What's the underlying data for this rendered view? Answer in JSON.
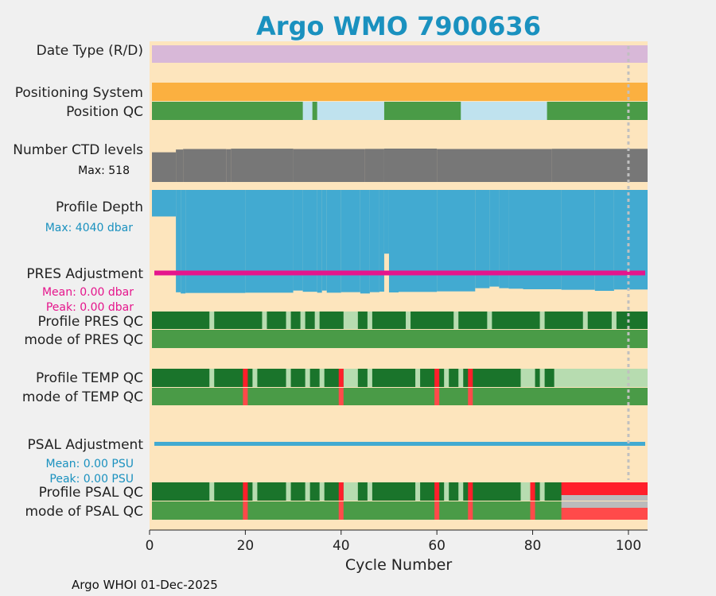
{
  "title": "Argo WMO 7900636",
  "footer": "Argo WHOI 01-Dec-2025",
  "colors": {
    "background": "#f0f0f0",
    "plot_bg": "#fde5bd",
    "title": "#1a91bf",
    "date_type": "#d8b8d8",
    "positioning": "#fbb040",
    "qc_good": "#1a742b",
    "qc_mode_good": "#4a9b47",
    "qc_light": "#b7dcb0",
    "qc_bad": "#ff1f2b",
    "qc_mode_bad": "#ff4a4a",
    "qc_missing": "#bbbbbb",
    "pos_interp": "#bfe2ee",
    "ctd": "#777777",
    "depth": "#42aad1",
    "pres_adj": "#e5158c",
    "psal_adj": "#42aad1",
    "dotted": "#c0c0c0",
    "axis": "#222222"
  },
  "labels": {
    "date_type": "Date Type (R/D)",
    "positioning": "Positioning System",
    "position_qc": "Position QC",
    "ctd_levels": "Number CTD levels",
    "ctd_max": "Max: 518",
    "profile_depth": "Profile Depth",
    "depth_max": "Max: 4040 dbar",
    "pres_adj": "PRES Adjustment",
    "pres_mean": "Mean: 0.00 dbar",
    "pres_peak": "Peak: 0.00 dbar",
    "profile_pres_qc": "Profile PRES QC",
    "mode_pres_qc": "mode of PRES QC",
    "profile_temp_qc": "Profile TEMP QC",
    "mode_temp_qc": "mode of TEMP QC",
    "psal_adj": "PSAL Adjustment",
    "psal_mean": "Mean: 0.00 PSU",
    "psal_peak": "Peak: 0.00 PSU",
    "profile_psal_qc": "Profile PSAL QC",
    "mode_psal_qc": "mode of PSAL QC"
  },
  "chart_data": {
    "type": "table",
    "xlabel": "Cycle Number",
    "xlim": [
      0,
      104
    ],
    "xticks": [
      0,
      20,
      40,
      60,
      80,
      100
    ],
    "grid": false,
    "dotted_cycle": 100,
    "position_qc_interp_ranges": [
      [
        32,
        34
      ],
      [
        35,
        49
      ],
      [
        65,
        83
      ]
    ],
    "pres_profile_qc_light_ranges": [
      [
        12.5,
        13.5
      ],
      [
        23.5,
        24.5
      ],
      [
        28.5,
        29.5
      ],
      [
        31.5,
        32.5
      ],
      [
        34.5,
        35.5
      ],
      [
        40.5,
        43.5
      ],
      [
        45.5,
        46.5
      ],
      [
        53.5,
        54.5
      ],
      [
        63.5,
        64.5
      ],
      [
        70.5,
        71.5
      ],
      [
        81.5,
        82.5
      ],
      [
        90.5,
        91.5
      ],
      [
        96.5,
        97.5
      ]
    ],
    "temp_profile_qc_light_ranges": [
      [
        12.5,
        13.5
      ],
      [
        21.5,
        22.5
      ],
      [
        28.5,
        29.5
      ],
      [
        32.5,
        33.5
      ],
      [
        35.5,
        36.5
      ],
      [
        40.5,
        43.5
      ],
      [
        45.5,
        46.5
      ],
      [
        55.5,
        56.5
      ],
      [
        61.5,
        62.5
      ],
      [
        64.5,
        65.5
      ],
      [
        77.5,
        80.5
      ],
      [
        81.5,
        82.5
      ],
      [
        84.5,
        104
      ]
    ],
    "temp_bad_cycles": [
      20,
      40,
      60,
      67
    ],
    "psal_profile_qc_light_ranges": [
      [
        12.5,
        13.5
      ],
      [
        21.5,
        22.5
      ],
      [
        28.5,
        29.5
      ],
      [
        32.5,
        33.5
      ],
      [
        35.5,
        36.5
      ],
      [
        40.5,
        43.5
      ],
      [
        45.5,
        46.5
      ],
      [
        55.5,
        56.5
      ],
      [
        61.5,
        62.5
      ],
      [
        64.5,
        65.5
      ],
      [
        77.5,
        79.5
      ],
      [
        81.5,
        82.5
      ]
    ],
    "psal_bad_cycles": [
      20,
      40,
      60,
      67,
      80
    ],
    "psal_profile_bad_range": [
      86,
      104
    ],
    "psal_mode_missing_range": [
      86,
      104
    ],
    "ctd_levels_max": 518,
    "ctd_levels": [
      {
        "x": [
          0.5,
          5.5
        ],
        "v": 450
      },
      {
        "x": [
          5.5,
          7
        ],
        "v": 492
      },
      {
        "x": [
          7,
          16
        ],
        "v": 500
      },
      {
        "x": [
          16,
          17
        ],
        "v": 498
      },
      {
        "x": [
          17,
          30
        ],
        "v": 505
      },
      {
        "x": [
          30,
          45
        ],
        "v": 500
      },
      {
        "x": [
          45,
          49
        ],
        "v": 502
      },
      {
        "x": [
          49,
          60
        ],
        "v": 506
      },
      {
        "x": [
          60,
          84
        ],
        "v": 500
      },
      {
        "x": [
          84,
          104
        ],
        "v": 503
      }
    ],
    "profile_depth_max": 4040,
    "profile_depth": [
      {
        "x": [
          0.5,
          5.5
        ],
        "v": 1000
      },
      {
        "x": [
          5.5,
          6.5
        ],
        "v": 3855
      },
      {
        "x": [
          6.5,
          7.5
        ],
        "v": 3900
      },
      {
        "x": [
          7.5,
          20
        ],
        "v": 3880
      },
      {
        "x": [
          20,
          30
        ],
        "v": 3870
      },
      {
        "x": [
          30,
          32
        ],
        "v": 3790
      },
      {
        "x": [
          32,
          35
        ],
        "v": 3835
      },
      {
        "x": [
          35,
          36
        ],
        "v": 3870
      },
      {
        "x": [
          36,
          37
        ],
        "v": 3790
      },
      {
        "x": [
          37,
          40
        ],
        "v": 3870
      },
      {
        "x": [
          40,
          44
        ],
        "v": 3850
      },
      {
        "x": [
          44,
          46
        ],
        "v": 3900
      },
      {
        "x": [
          46,
          48
        ],
        "v": 3850
      },
      {
        "x": [
          48,
          49
        ],
        "v": 3830
      },
      {
        "x": [
          49,
          50
        ],
        "v": 2400
      },
      {
        "x": [
          50,
          52
        ],
        "v": 3860
      },
      {
        "x": [
          52,
          60
        ],
        "v": 3840
      },
      {
        "x": [
          60,
          68
        ],
        "v": 3820
      },
      {
        "x": [
          68,
          71
        ],
        "v": 3700
      },
      {
        "x": [
          71,
          73
        ],
        "v": 3640
      },
      {
        "x": [
          73,
          75
        ],
        "v": 3700
      },
      {
        "x": [
          75,
          78
        ],
        "v": 3720
      },
      {
        "x": [
          78,
          86
        ],
        "v": 3740
      },
      {
        "x": [
          86,
          93
        ],
        "v": 3760
      },
      {
        "x": [
          93,
          97
        ],
        "v": 3800
      },
      {
        "x": [
          97,
          104
        ],
        "v": 3750
      }
    ],
    "pres_adjustment": {
      "mean": 0.0,
      "peak": 0.0,
      "unit": "dbar"
    },
    "psal_adjustment": {
      "mean": 0.0,
      "peak": 0.0,
      "unit": "PSU"
    }
  }
}
